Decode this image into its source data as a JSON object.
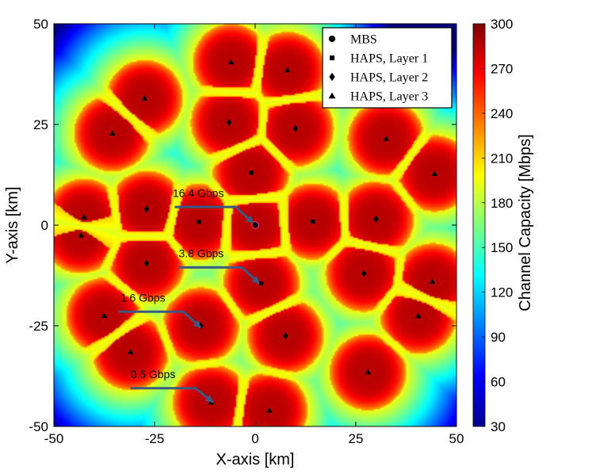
{
  "chart_data": {
    "type": "heatmap",
    "title": "",
    "xlabel": "X-axis [km]",
    "ylabel": "Y-axis [km]",
    "xlim": [
      -50,
      50
    ],
    "ylim": [
      -50,
      50
    ],
    "xticks": [
      -50,
      -25,
      0,
      25,
      50
    ],
    "yticks": [
      -50,
      -25,
      0,
      25,
      50
    ],
    "xtick_labels": [
      "-50",
      "-25",
      "0",
      "25",
      "50"
    ],
    "ytick_labels": [
      "-50",
      "-25",
      "0",
      "25",
      "50"
    ],
    "colorbar": {
      "label": "Channel Capacity [Mbps]",
      "range": [
        30,
        300
      ],
      "ticks": [
        30,
        60,
        90,
        120,
        150,
        180,
        210,
        240,
        270,
        300
      ],
      "colormap": "jet"
    },
    "legend": {
      "position": "top-right",
      "entries": [
        {
          "marker": "circle",
          "label": "MBS"
        },
        {
          "marker": "square",
          "label": "HAPS, Layer 1"
        },
        {
          "marker": "diamond",
          "label": "HAPS, Layer 2"
        },
        {
          "marker": "triangle",
          "label": "HAPS, Layer 3"
        }
      ]
    },
    "series": [
      {
        "name": "MBS",
        "marker": "circle",
        "points": [
          [
            0,
            0
          ]
        ]
      },
      {
        "name": "HAPS, Layer 1",
        "marker": "square",
        "points": [
          [
            -14,
            0.8
          ],
          [
            14.3,
            0.9
          ],
          [
            -1,
            13
          ],
          [
            1.5,
            -14.5
          ]
        ]
      },
      {
        "name": "HAPS, Layer 2",
        "marker": "diamond",
        "points": [
          [
            -27,
            4
          ],
          [
            -27,
            -9.5
          ],
          [
            -6.5,
            25.5
          ],
          [
            10,
            24
          ],
          [
            30,
            1.5
          ],
          [
            27,
            -12
          ],
          [
            -13.5,
            -25
          ],
          [
            7.5,
            -27.5
          ]
        ]
      },
      {
        "name": "HAPS, Layer 3",
        "marker": "triangle",
        "points": [
          [
            -6,
            40.5
          ],
          [
            8,
            38.5
          ],
          [
            -27.5,
            31.5
          ],
          [
            -35.5,
            22.8
          ],
          [
            32.5,
            21.5
          ],
          [
            44.5,
            12.8
          ],
          [
            -42.5,
            2
          ],
          [
            -43.3,
            -2.5
          ],
          [
            44,
            -14
          ],
          [
            -37.5,
            -22.5
          ],
          [
            40.5,
            -22.5
          ],
          [
            -31,
            -31.5
          ],
          [
            28,
            -36.5
          ],
          [
            -11,
            -44
          ],
          [
            3.5,
            -46
          ]
        ]
      }
    ],
    "annotations": [
      {
        "text": "16.4 Gbps",
        "text_at": [
          -20.5,
          7
        ],
        "arrow_from": [
          -20,
          4.5
        ],
        "arrow_to": [
          -0.5,
          0.5
        ]
      },
      {
        "text": "3.8 Gbps",
        "text_at": [
          -19,
          -8
        ],
        "arrow_from": [
          -19,
          -10.5
        ],
        "arrow_to": [
          1,
          -14.5
        ]
      },
      {
        "text": "1.6 Gbps",
        "text_at": [
          -33.5,
          -19
        ],
        "arrow_from": [
          -34,
          -21.5
        ],
        "arrow_to": [
          -13.5,
          -25.5
        ]
      },
      {
        "text": "0.5 Gbps",
        "text_at": [
          -31,
          -38
        ],
        "arrow_from": [
          -31,
          -40.5
        ],
        "arrow_to": [
          -10.5,
          -44
        ]
      }
    ]
  }
}
